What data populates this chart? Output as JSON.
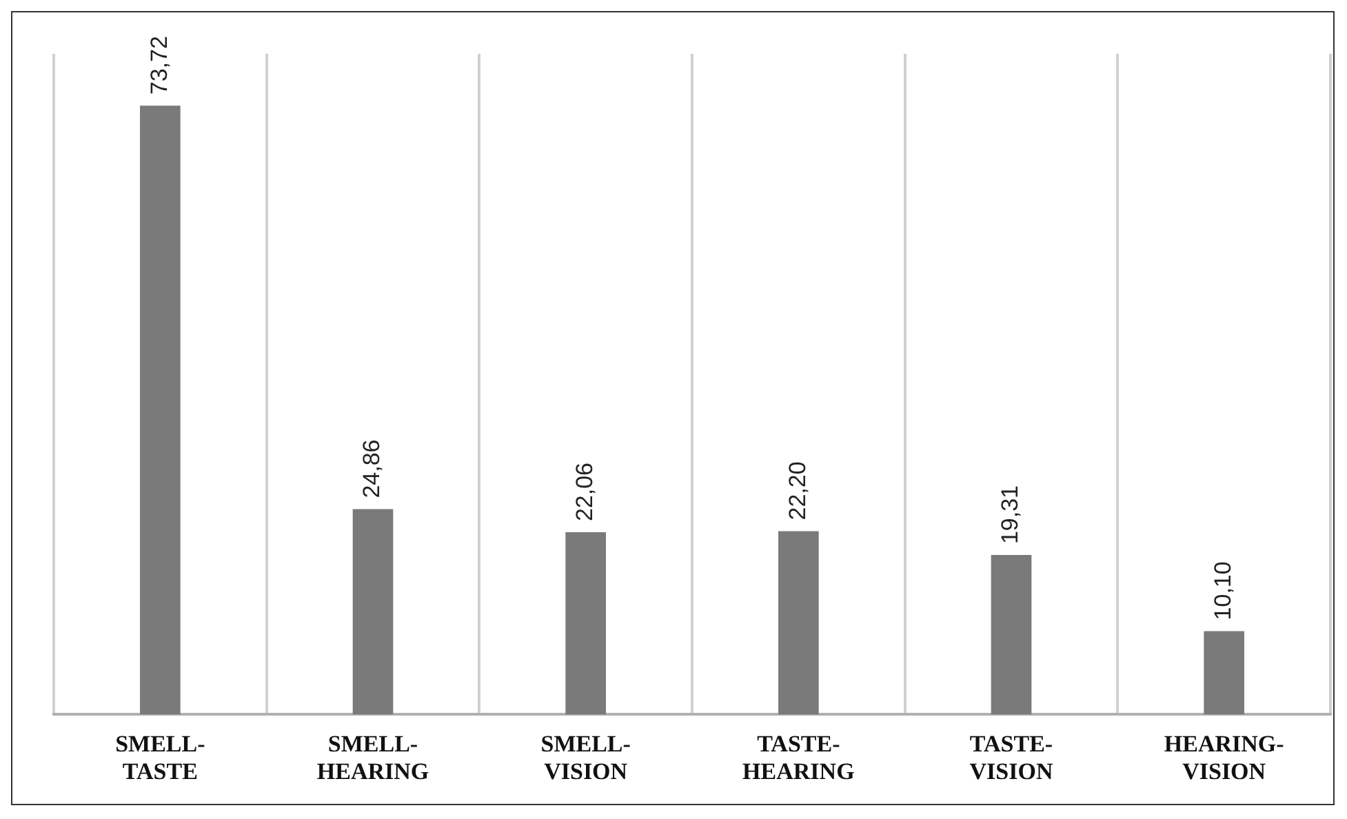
{
  "chart_data": {
    "type": "bar",
    "categories": [
      "SMELL-TASTE",
      "SMELL-HEARING",
      "SMELL-VISION",
      "TASTE-HEARING",
      "TASTE-VISION",
      "HEARING-VISION"
    ],
    "values": [
      73.72,
      24.86,
      22.06,
      22.2,
      19.31,
      10.1
    ],
    "value_labels": [
      "73,72",
      "24,86",
      "22,06",
      "22,20",
      "19,31",
      "10,10"
    ],
    "color": "#7a7a7a",
    "ylim": [
      0,
      80
    ],
    "grid": "x",
    "legend": false,
    "tick_labels": "x"
  }
}
